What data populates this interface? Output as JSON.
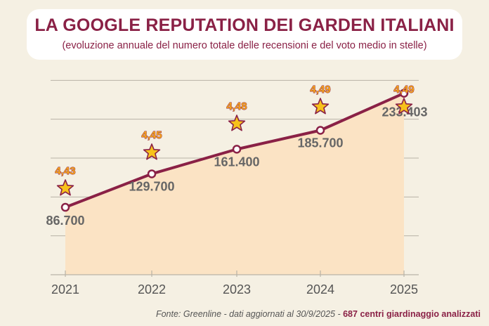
{
  "title": "LA GOOGLE REPUTATION DEI GARDEN ITALIANI",
  "subtitle": "(evoluzione annuale del numero totale delle recensioni e del voto medio in stelle)",
  "footer": {
    "source": "Fonte: Greenline - dati aggiornati al 30/9/2025 - ",
    "highlight": "687 centri giardinaggio analizzati"
  },
  "colors": {
    "line": "#8a2146",
    "area": "#fbe3c4",
    "star_fill": "#f7c21b",
    "star_stroke": "#8a2146",
    "grid": "#b9b3a7",
    "value_text": "#666666",
    "rating_text": "#f5a31c"
  },
  "chart_data": {
    "type": "line",
    "title": "LA GOOGLE REPUTATION DEI GARDEN ITALIANI",
    "subtitle": "(evoluzione annuale del numero totale delle recensioni e del voto medio in stelle)",
    "categories": [
      "2021",
      "2022",
      "2023",
      "2024",
      "2025"
    ],
    "series": [
      {
        "name": "Numero totale recensioni",
        "values": [
          86700,
          129700,
          161400,
          185700,
          233403
        ],
        "labels": [
          "86.700",
          "129.700",
          "161.400",
          "185.700",
          "233.403"
        ]
      },
      {
        "name": "Voto medio in stelle",
        "values": [
          4.43,
          4.45,
          4.48,
          4.49,
          4.49
        ],
        "labels": [
          "4,43",
          "4,45",
          "4,48",
          "4,49",
          "4,49"
        ]
      }
    ],
    "ylim": [
      0,
      300000
    ],
    "grid": true,
    "xlabel": "",
    "ylabel": ""
  }
}
